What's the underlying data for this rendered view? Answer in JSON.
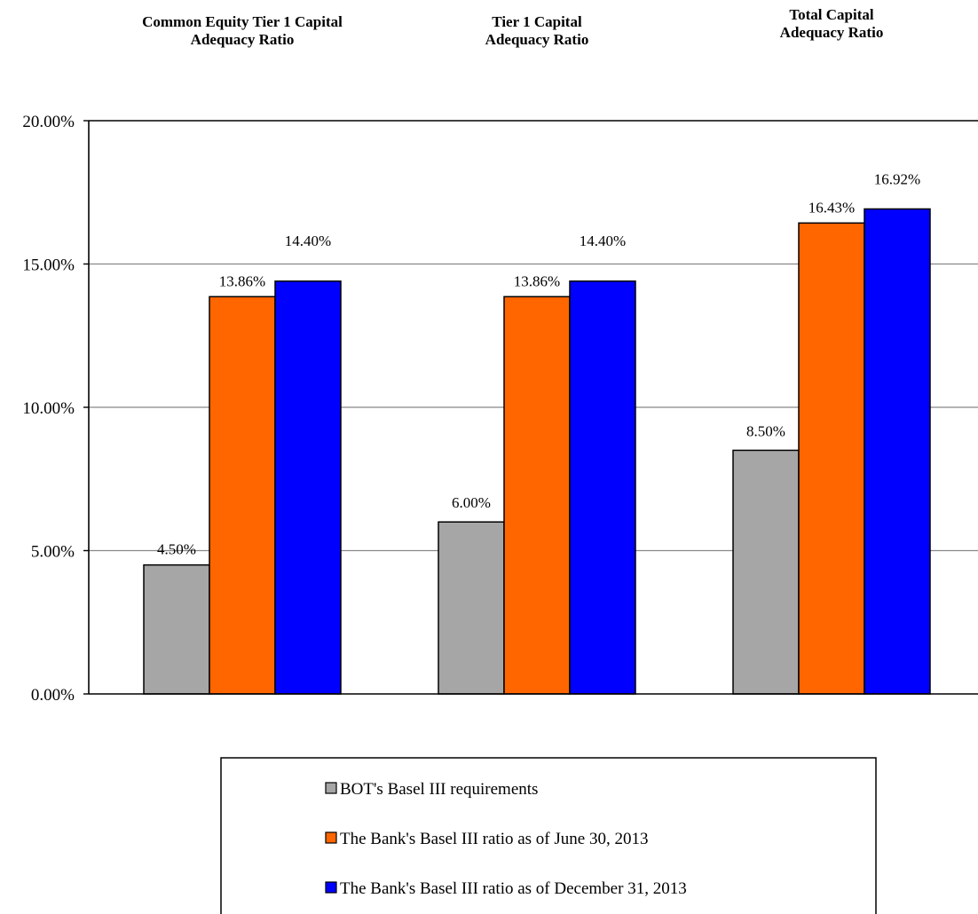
{
  "chart_data": {
    "type": "bar",
    "categories": [
      [
        "Common Equity Tier 1 Capital",
        "Adequacy Ratio"
      ],
      [
        "Tier 1 Capital",
        "Adequacy Ratio"
      ],
      [
        "Total Capital",
        "Adequacy Ratio"
      ]
    ],
    "series": [
      {
        "name": "BOT's Basel III requirements",
        "color": "#a6a6a6",
        "values": [
          4.5,
          6.0,
          8.5
        ],
        "labels": [
          "4.50%",
          "6.00%",
          "8.50%"
        ]
      },
      {
        "name": "The Bank's Basel III ratio as of June 30, 2013",
        "color": "#ff6600",
        "values": [
          13.86,
          13.86,
          16.43
        ],
        "labels": [
          "13.86%",
          "13.86%",
          "16.43%"
        ]
      },
      {
        "name": "The Bank's Basel III ratio as of December 31, 2013",
        "color": "#0000ff",
        "values": [
          14.4,
          14.4,
          16.92
        ],
        "labels": [
          "14.40%",
          "14.40%",
          "16.92%"
        ]
      }
    ],
    "ylim": [
      0,
      20
    ],
    "yticks": [
      0,
      5,
      10,
      15,
      20
    ],
    "ytick_labels": [
      "0.00%",
      "5.00%",
      "10.00%",
      "15.00%",
      "20.00%"
    ],
    "grid": true,
    "legend_position": "bottom"
  }
}
